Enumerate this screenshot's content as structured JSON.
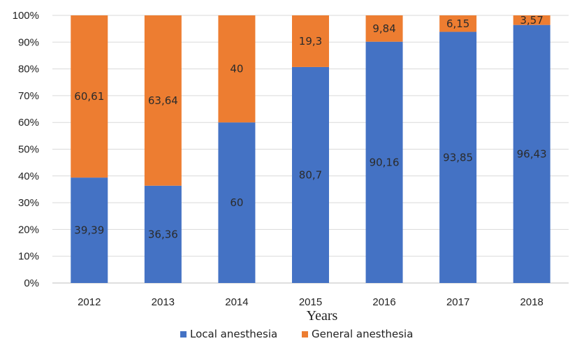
{
  "chart_data": {
    "type": "bar",
    "stacked": true,
    "categories": [
      "2012",
      "2013",
      "2014",
      "2015",
      "2016",
      "2017",
      "2018"
    ],
    "series": [
      {
        "name": "Local anesthesia",
        "color": "#4472C4",
        "values": [
          39.39,
          36.36,
          60,
          80.7,
          90.16,
          93.85,
          96.43
        ],
        "labels": [
          "39,39",
          "36,36",
          "60",
          "80,7",
          "90,16",
          "93,85",
          "96,43"
        ]
      },
      {
        "name": "General anesthesia",
        "color": "#ED7D31",
        "values": [
          60.61,
          63.64,
          40,
          19.3,
          9.84,
          6.15,
          3.57
        ],
        "labels": [
          "60,61",
          "63,64",
          "40",
          "19,3",
          "9,84",
          "6,15",
          "3,57"
        ]
      }
    ],
    "xlabel": "Years",
    "ylabel": "",
    "ylim": [
      0,
      100
    ],
    "yticks": [
      "0%",
      "10%",
      "20%",
      "30%",
      "40%",
      "50%",
      "60%",
      "70%",
      "80%",
      "90%",
      "100%"
    ],
    "grid": true,
    "legend_position": "bottom"
  }
}
